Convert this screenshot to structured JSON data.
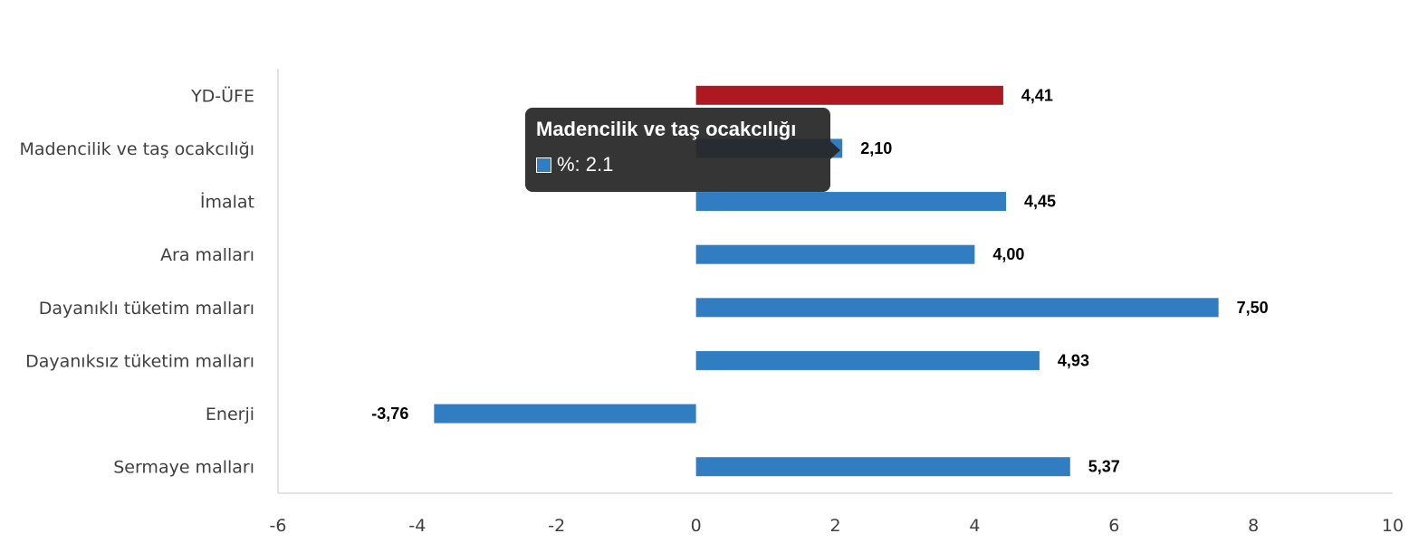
{
  "chart_data": {
    "type": "bar",
    "orientation": "horizontal",
    "categories": [
      "YD-ÜFE",
      "Madencilik ve taş ocakcılığı",
      "İmalat",
      "Ara malları",
      "Dayanıklı tüketim malları",
      "Dayanıksız tüketim malları",
      "Enerji",
      "Sermaye malları"
    ],
    "series": [
      {
        "values": [
          4.41,
          2.1,
          4.45,
          4.0,
          7.5,
          4.93,
          -3.76,
          5.37
        ]
      }
    ],
    "data_labels": [
      "4,41",
      "2,10",
      "4,45",
      "4,00",
      "7,50",
      "4,93",
      "-3,76",
      "5,37"
    ],
    "bar_colors": [
      "#AE1820",
      "#307EC1",
      "#307EC1",
      "#307EC1",
      "#307EC1",
      "#307EC1",
      "#307EC1",
      "#307EC1"
    ],
    "xlim": [
      -6,
      10
    ],
    "xticks": [
      -6,
      -4,
      -2,
      0,
      2,
      4,
      6,
      8,
      10
    ],
    "grid": false,
    "title": "",
    "xlabel": "",
    "ylabel": ""
  },
  "tooltip": {
    "title": "Madencilik ve taş ocakcılığı",
    "series_label": "%: 2.1",
    "swatch_color": "#307EC1"
  }
}
